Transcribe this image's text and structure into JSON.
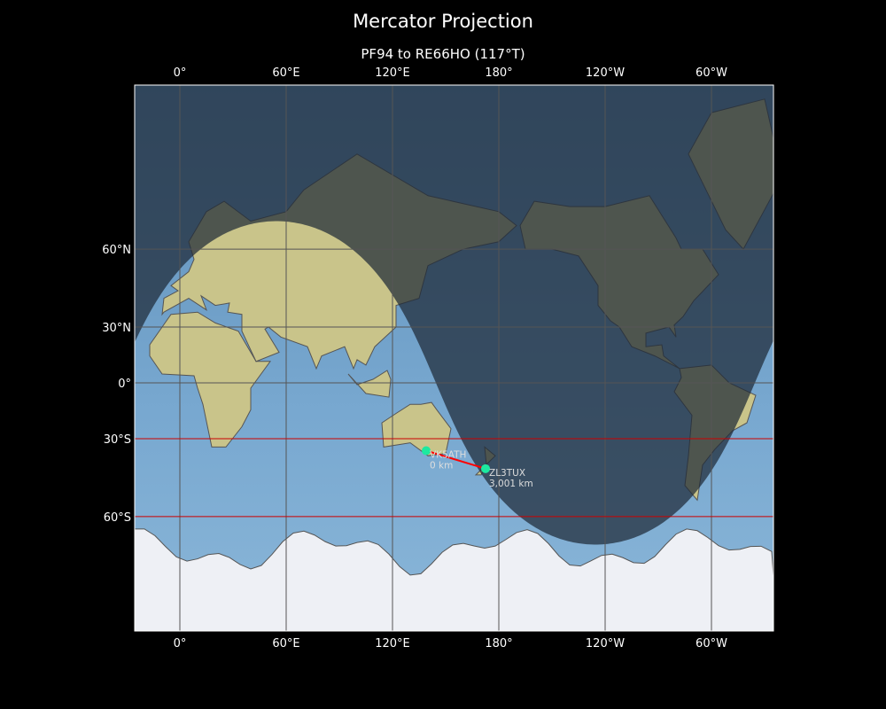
{
  "title": "Mercator Projection",
  "subtitle": "PF94 to RE66HO (117°T)",
  "map": {
    "projection": "Mercator",
    "lon_ticks": [
      {
        "lon": 0,
        "label": "0°"
      },
      {
        "lon": 60,
        "label": "60°E"
      },
      {
        "lon": 120,
        "label": "120°E"
      },
      {
        "lon": 180,
        "label": "180°"
      },
      {
        "lon": 240,
        "label": "120°W"
      },
      {
        "lon": 300,
        "label": "60°W"
      }
    ],
    "lat_ticks": [
      {
        "lat": 60,
        "label": "60°N"
      },
      {
        "lat": 30,
        "label": "30°N"
      },
      {
        "lat": 0,
        "label": "0°"
      },
      {
        "lat": -30,
        "label": "30°S"
      },
      {
        "lat": -60,
        "label": "60°S"
      }
    ],
    "highlighted_latitudes": [
      -30,
      -60
    ],
    "colors": {
      "grid": "#555555",
      "highlight_lat": "#cc0000",
      "path": "#ff0000",
      "marker": "#1de9a0",
      "night": "#1e2a38",
      "ocean": "#6f9fc8",
      "land": "#c9c48a"
    },
    "stations": [
      {
        "name": "VK5ATH",
        "distance": "0 km",
        "lat": -35.7,
        "lon": 139
      },
      {
        "name": "ZL3TUX",
        "distance": "3,001 km",
        "lat": -43.5,
        "lon": 172.5
      }
    ]
  }
}
